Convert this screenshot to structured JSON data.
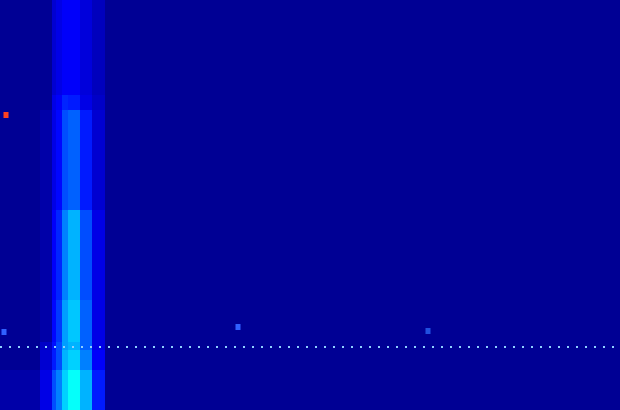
{
  "chart_data": {
    "type": "heatmap",
    "xlim": [
      0,
      620
    ],
    "ylim": [
      0,
      410
    ],
    "tick_labels": false,
    "grid": false,
    "x_edges": [
      0,
      40,
      52,
      56,
      62,
      68,
      80,
      92,
      105,
      620
    ],
    "y_edges": [
      0,
      40,
      60,
      68,
      110,
      200,
      300,
      315,
      410
    ],
    "cells": [
      [
        0.04,
        0.1,
        0.2,
        0.25,
        0.33,
        0.38,
        0.3,
        0.15,
        0.02
      ],
      [
        0.02,
        0.08,
        0.15,
        0.2,
        0.3,
        0.33,
        0.25,
        0.12,
        0.02
      ],
      [
        0.02,
        0.07,
        0.14,
        0.2,
        0.28,
        0.3,
        0.22,
        0.1,
        0.02
      ],
      [
        0.02,
        0.04,
        0.13,
        0.18,
        0.28,
        0.32,
        0.22,
        0.1,
        0.02
      ],
      [
        0.02,
        0.04,
        0.12,
        0.16,
        0.25,
        0.3,
        0.2,
        0.1,
        0.02
      ],
      [
        0.02,
        0.04,
        0.1,
        0.13,
        0.2,
        0.22,
        0.15,
        0.08,
        0.02
      ],
      [
        0.02,
        0.02,
        0.1,
        0.12,
        0.16,
        0.15,
        0.1,
        0.07,
        0.02
      ],
      [
        0.02,
        0.02,
        0.08,
        0.1,
        0.12,
        0.12,
        0.09,
        0.06,
        0.02
      ]
    ],
    "zlim": [
      0,
      1
    ],
    "series": [
      {
        "type": "line",
        "line_style": "dotted",
        "color": "#8fd0ff",
        "x": [
          0,
          620
        ],
        "values": [
          63,
          63
        ]
      },
      {
        "type": "scatter",
        "marker": "square",
        "x": [
          6,
          4,
          238,
          428
        ],
        "values": [
          295,
          78,
          83,
          79
        ],
        "colors": [
          "#ff4020",
          "#3060ff",
          "#3060ff",
          "#2050e0"
        ]
      }
    ]
  }
}
